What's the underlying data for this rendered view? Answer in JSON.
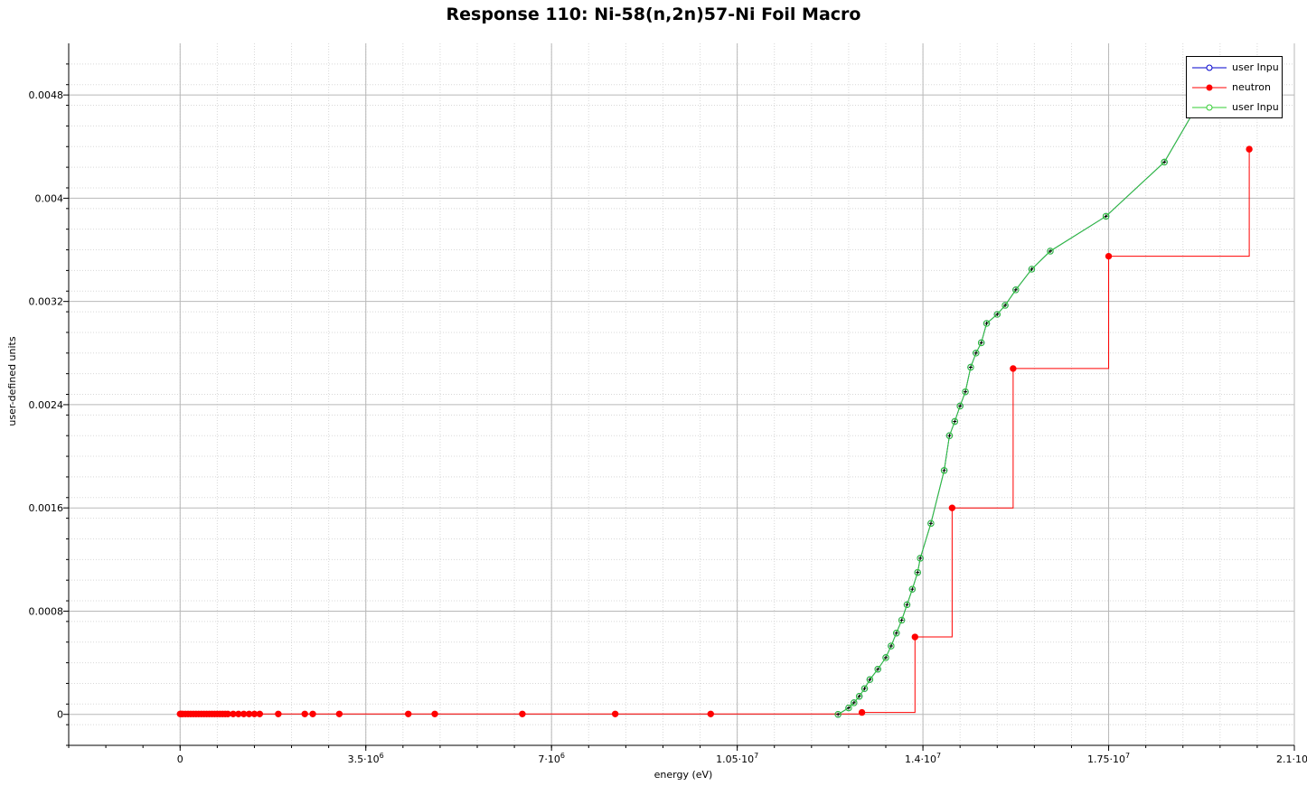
{
  "chart_data": {
    "type": "line",
    "title": "Response 110:  Ni-58(n,2n)57-Ni Foil Macro",
    "xlabel": "energy (eV)",
    "ylabel": "user-defined units",
    "xlim": [
      -2100000,
      21000000
    ],
    "ylim": [
      -0.00024,
      0.0052
    ],
    "x_ticks": [
      {
        "value": 0,
        "label": "0",
        "exp": ""
      },
      {
        "value": 3500000,
        "label": "3.5·10",
        "exp": "6"
      },
      {
        "value": 7000000,
        "label": "7·10",
        "exp": "6"
      },
      {
        "value": 10500000,
        "label": "1.05·10",
        "exp": "7"
      },
      {
        "value": 14000000,
        "label": "1.4·10",
        "exp": "7"
      },
      {
        "value": 17500000,
        "label": "1.75·10",
        "exp": "7"
      },
      {
        "value": 21000000,
        "label": "2.1·10",
        "exp": "7"
      }
    ],
    "y_ticks": [
      {
        "value": 0,
        "label": "0"
      },
      {
        "value": 0.0008,
        "label": "0.0008"
      },
      {
        "value": 0.0016,
        "label": "0.0016"
      },
      {
        "value": 0.0024,
        "label": "0.0024"
      },
      {
        "value": 0.0032,
        "label": "0.0032"
      },
      {
        "value": 0.004,
        "label": "0.004"
      },
      {
        "value": 0.0048,
        "label": "0.0048"
      }
    ],
    "grid": true,
    "legend_position": "top-right",
    "series": [
      {
        "name": "user Inpu",
        "color": "#0000cc",
        "style": "line-markers",
        "marker": "open-circle",
        "x": [
          12400000,
          12600000,
          12700000,
          12800000,
          12900000,
          13000000,
          13150000,
          13300000,
          13400000,
          13500000,
          13600000,
          13700000,
          13800000,
          13900000,
          13950000,
          14150000,
          14400000,
          14500000,
          14600000,
          14700000,
          14800000,
          14900000,
          15000000,
          15100000,
          15200000,
          15400000,
          15550000,
          15750000,
          16050000,
          16400000,
          17450000,
          18550000,
          19400000
        ],
        "y": [
          0.0,
          5e-05,
          9e-05,
          0.00014,
          0.0002,
          0.00027,
          0.00035,
          0.00044,
          0.00053,
          0.00063,
          0.00073,
          0.00085,
          0.00097,
          0.0011,
          0.00121,
          0.00148,
          0.00189,
          0.00216,
          0.00227,
          0.00239,
          0.0025,
          0.00269,
          0.0028,
          0.00288,
          0.00303,
          0.0031,
          0.00317,
          0.00329,
          0.00345,
          0.00359,
          0.00386,
          0.00428,
          0.00488
        ]
      },
      {
        "name": "neutron",
        "color": "#ff0000",
        "style": "step",
        "marker": "filled-circle",
        "x": [
          0,
          20000,
          50000,
          100000,
          150000,
          200000,
          250000,
          300000,
          350000,
          400000,
          450000,
          500000,
          550000,
          600000,
          650000,
          700000,
          750000,
          800000,
          850000,
          900000,
          1000000,
          1100000,
          1200000,
          1300000,
          1400000,
          1500000,
          1850000,
          2350000,
          2500000,
          3000000,
          4300000,
          4800000,
          6450000,
          8200000,
          10000000,
          12850000,
          13850000,
          14550000,
          15700000,
          17500000,
          20150000
        ],
        "y": [
          3e-06,
          3e-06,
          3e-06,
          3e-06,
          3e-06,
          3e-06,
          3e-06,
          3e-06,
          3e-06,
          3e-06,
          3e-06,
          3e-06,
          3e-06,
          3e-06,
          3e-06,
          3e-06,
          3e-06,
          3e-06,
          3e-06,
          3e-06,
          3e-06,
          3e-06,
          3e-06,
          3e-06,
          3e-06,
          3e-06,
          3e-06,
          3e-06,
          3e-06,
          3e-06,
          3e-06,
          3e-06,
          3e-06,
          3e-06,
          3e-06,
          1.5e-05,
          0.0006,
          0.0016,
          0.00268,
          0.00355,
          0.00438
        ]
      },
      {
        "name": "user Inpu",
        "color": "#33cc33",
        "style": "line-markers",
        "marker": "open-circle",
        "x": [
          12400000,
          12600000,
          12700000,
          12800000,
          12900000,
          13000000,
          13150000,
          13300000,
          13400000,
          13500000,
          13600000,
          13700000,
          13800000,
          13900000,
          13950000,
          14150000,
          14400000,
          14500000,
          14600000,
          14700000,
          14800000,
          14900000,
          15000000,
          15100000,
          15200000,
          15400000,
          15550000,
          15750000,
          16050000,
          16400000,
          17450000,
          18550000,
          19400000
        ],
        "y": [
          0.0,
          5e-05,
          9e-05,
          0.00014,
          0.0002,
          0.00027,
          0.00035,
          0.00044,
          0.00053,
          0.00063,
          0.00073,
          0.00085,
          0.00097,
          0.0011,
          0.00121,
          0.00148,
          0.00189,
          0.00216,
          0.00227,
          0.00239,
          0.0025,
          0.00269,
          0.0028,
          0.00288,
          0.00303,
          0.0031,
          0.00317,
          0.00329,
          0.00345,
          0.00359,
          0.00386,
          0.00428,
          0.00488
        ]
      }
    ]
  }
}
